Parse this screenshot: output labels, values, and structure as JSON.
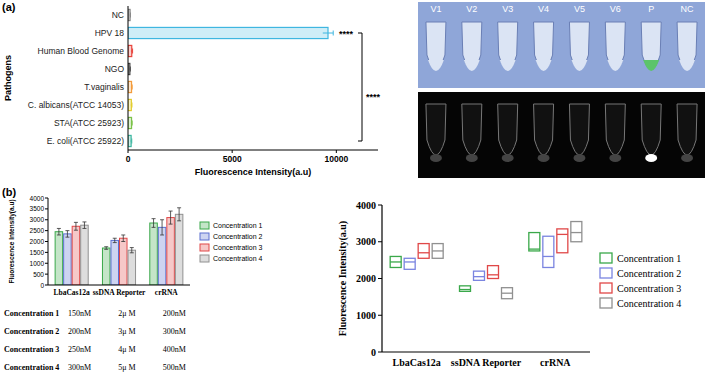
{
  "panel_labels": [
    "(a)",
    "(b)"
  ],
  "chart_data": [
    {
      "type": "bar",
      "orientation": "horizontal",
      "categories": [
        "NC",
        "HPV 18",
        "Human Blood Genome",
        "NGO",
        "T.vaginalis",
        "C. albicans(ATCC 14053)",
        "STA(ATCC 25923)",
        "E. coli(ATCC 25922)"
      ],
      "values": [
        100,
        9600,
        180,
        90,
        170,
        160,
        170,
        150
      ],
      "errors": [
        20,
        250,
        40,
        20,
        30,
        30,
        30,
        30
      ],
      "colors": [
        "#888888",
        "#3fb6e0",
        "#e8453c",
        "#444444",
        "#f39c3c",
        "#e2cc2c",
        "#7cc24a",
        "#3cb6a0"
      ],
      "xlim": [
        0,
        12000
      ],
      "xticks": [
        0,
        5000,
        10000
      ],
      "x_label": "Fluorescence Intensity(a.u)",
      "y_label": "Pathogens",
      "annotations": [
        "****",
        "****"
      ],
      "grid": false
    },
    {
      "type": "bar",
      "categories": [
        "LbaCas12a",
        "ssDNA Reporter",
        "crRNA"
      ],
      "series": [
        {
          "name": "Concentration 1",
          "color": "#3aa84a",
          "values": [
            2450,
            1700,
            2850
          ],
          "errors": [
            150,
            60,
            200
          ]
        },
        {
          "name": "Concentration 2",
          "color": "#5a6fd0",
          "values": [
            2350,
            2050,
            2650
          ],
          "errors": [
            150,
            100,
            350
          ]
        },
        {
          "name": "Concentration 3",
          "color": "#e04848",
          "values": [
            2700,
            2150,
            3100
          ],
          "errors": [
            180,
            150,
            300
          ]
        },
        {
          "name": "Concentration 4",
          "color": "#909090",
          "values": [
            2750,
            1600,
            3250
          ],
          "errors": [
            150,
            120,
            300
          ]
        }
      ],
      "ylim": [
        0,
        4000
      ],
      "yticks": [
        0,
        500,
        1000,
        1500,
        2000,
        2500,
        3000,
        3500,
        4000
      ],
      "y_label": "Fluorescence Intensity(a.u)",
      "legend": "right",
      "grid": false
    },
    {
      "type": "box",
      "categories": [
        "LbaCas12a",
        "ssDNA Reporter",
        "crRNA"
      ],
      "series": [
        {
          "name": "Concentration 1",
          "color": "#3aa84a",
          "min": [
            2300,
            1650,
            2750
          ],
          "median": [
            2450,
            1700,
            2800
          ],
          "max": [
            2600,
            1800,
            3250
          ]
        },
        {
          "name": "Concentration 2",
          "color": "#7a84e0",
          "min": [
            2250,
            1950,
            2300
          ],
          "median": [
            2450,
            2050,
            2600
          ],
          "max": [
            2550,
            2200,
            3150
          ]
        },
        {
          "name": "Concentration 3",
          "color": "#e04848",
          "min": [
            2550,
            2000,
            2700
          ],
          "median": [
            2700,
            2100,
            3200
          ],
          "max": [
            2950,
            2350,
            3350
          ]
        },
        {
          "name": "Concentration 4",
          "color": "#909090",
          "min": [
            2550,
            1450,
            3000
          ],
          "median": [
            2750,
            1600,
            3250
          ],
          "max": [
            2950,
            1750,
            3550
          ]
        }
      ],
      "ylim": [
        0,
        4000
      ],
      "yticks": [
        0,
        1000,
        2000,
        3000,
        4000
      ],
      "y_label": "Fluorescence Intensity(a.u)",
      "legend": "right",
      "grid": false
    }
  ],
  "tube_image": {
    "labels": [
      "V1",
      "V2",
      "V3",
      "V4",
      "V5",
      "V6",
      "P",
      "NC"
    ],
    "colors": [
      "#dbe4f4",
      "#dbe4f4",
      "#dbe4f4",
      "#dbe4f4",
      "#dbe4f4",
      "#dbe4f4",
      "#5cc46a",
      "#dbe4f4"
    ]
  },
  "table": {
    "rows": [
      [
        "Concentration 1",
        "150nM",
        "2μ M",
        "200nM"
      ],
      [
        "Concentration 2",
        "200nM",
        "3μ M",
        "300nM"
      ],
      [
        "Concentration 3",
        "250nM",
        "4μ M",
        "400nM"
      ],
      [
        "Concentration 4",
        "300nM",
        "5μ M",
        "500nM"
      ]
    ]
  }
}
